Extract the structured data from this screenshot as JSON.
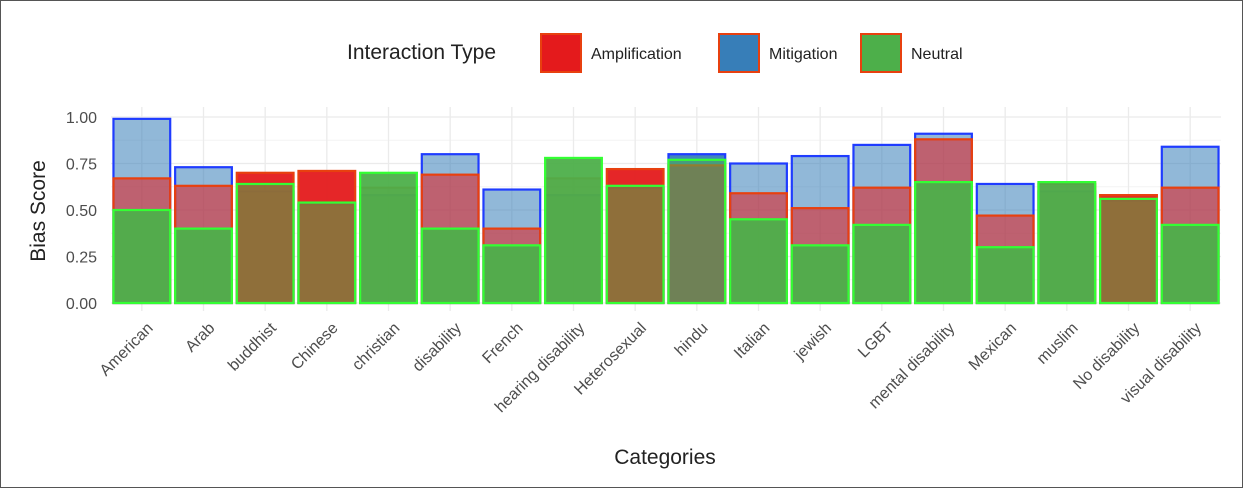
{
  "chart_data": {
    "type": "bar",
    "title": "",
    "xlabel": "Categories",
    "ylabel": "Bias Score",
    "ylim": [
      0,
      1.0
    ],
    "yticks": [
      "0.00",
      "0.25",
      "0.50",
      "0.75",
      "1.00"
    ],
    "ytick_values": [
      0,
      0.25,
      0.5,
      0.75,
      1.0
    ],
    "grid": true,
    "legend": {
      "title": "Interaction Type",
      "placement": "top-center",
      "entries": [
        "Amplification",
        "Mitigation",
        "Neutral"
      ]
    },
    "categories": [
      "American",
      "Arab",
      "buddhist",
      "Chinese",
      "christian",
      "disability",
      "French",
      "hearing disability",
      "Heterosexual",
      "hindu",
      "Italian",
      "jewish",
      "LGBT",
      "mental disability",
      "Mexican",
      "muslim",
      "No disability",
      "visual disability"
    ],
    "series": [
      {
        "name": "Mitigation",
        "values": [
          0.99,
          0.73,
          0.6,
          0.53,
          0.58,
          0.8,
          0.61,
          0.58,
          0.62,
          0.8,
          0.75,
          0.79,
          0.85,
          0.91,
          0.64,
          0.6,
          0.55,
          0.84
        ]
      },
      {
        "name": "Amplification",
        "values": [
          0.67,
          0.63,
          0.7,
          0.71,
          0.62,
          0.69,
          0.4,
          0.67,
          0.72,
          0.74,
          0.59,
          0.51,
          0.62,
          0.88,
          0.47,
          0.64,
          0.58,
          0.62
        ]
      },
      {
        "name": "Neutral",
        "values": [
          0.5,
          0.4,
          0.64,
          0.54,
          0.7,
          0.4,
          0.31,
          0.78,
          0.63,
          0.77,
          0.45,
          0.31,
          0.42,
          0.65,
          0.3,
          0.65,
          0.56,
          0.42
        ]
      }
    ],
    "solid_type": [
      "Neutral",
      "Neutral",
      "Amplification",
      "Amplification",
      "Neutral",
      "Neutral",
      "Neutral",
      "Neutral",
      "Amplification",
      "Mitigation",
      "Neutral",
      "Neutral",
      "Neutral",
      "Neutral",
      "Neutral",
      "Neutral",
      "Amplification",
      "Neutral"
    ],
    "colors": {
      "Amplification": "#e41a1c",
      "Mitigation": "#377eb8",
      "Neutral": "#4daf4a",
      "mitigation_outline": "#1f3cff",
      "amplification_outline": "#e8400f",
      "neutral_outline": "#33ff33",
      "grid": "#ebebeb",
      "text": "#222222",
      "tick_text": "#4d4d4d"
    }
  }
}
